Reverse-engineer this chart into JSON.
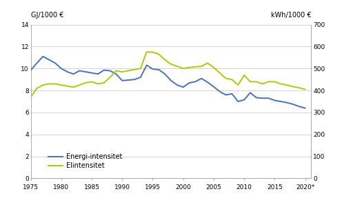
{
  "years": [
    1975,
    1976,
    1977,
    1978,
    1979,
    1980,
    1981,
    1982,
    1983,
    1984,
    1985,
    1986,
    1987,
    1988,
    1989,
    1990,
    1991,
    1992,
    1993,
    1994,
    1995,
    1996,
    1997,
    1998,
    1999,
    2000,
    2001,
    2002,
    2003,
    2004,
    2005,
    2006,
    2007,
    2008,
    2009,
    2010,
    2011,
    2012,
    2013,
    2014,
    2015,
    2016,
    2017,
    2018,
    2019,
    2020
  ],
  "energi": [
    9.85,
    10.5,
    11.1,
    10.8,
    10.5,
    10.0,
    9.7,
    9.5,
    9.8,
    9.7,
    9.6,
    9.5,
    9.85,
    9.8,
    9.5,
    8.9,
    8.95,
    9.0,
    9.2,
    10.3,
    9.95,
    9.9,
    9.5,
    8.9,
    8.5,
    8.3,
    8.7,
    8.8,
    9.1,
    8.75,
    8.35,
    7.9,
    7.6,
    7.7,
    7.0,
    7.15,
    7.8,
    7.35,
    7.3,
    7.3,
    7.1,
    7.0,
    6.9,
    6.75,
    6.55,
    6.4
  ],
  "elinten": [
    7.4,
    8.2,
    8.5,
    8.6,
    8.6,
    8.5,
    8.4,
    8.3,
    8.5,
    8.7,
    8.8,
    8.6,
    8.7,
    9.2,
    9.8,
    9.7,
    9.8,
    9.9,
    10.0,
    11.5,
    11.5,
    11.3,
    10.8,
    10.4,
    10.2,
    10.0,
    10.1,
    10.15,
    10.2,
    10.5,
    10.1,
    9.6,
    9.1,
    9.0,
    8.5,
    9.4,
    8.8,
    8.8,
    8.6,
    8.8,
    8.8,
    8.6,
    8.5,
    8.35,
    8.25,
    8.1
  ],
  "energi_color": "#4472C4",
  "elinten_color": "#AACC00",
  "ylabel_left": "GJ/1000 €",
  "ylabel_right": "kWh/1000 €",
  "ylim_left": [
    0,
    14
  ],
  "ylim_right": [
    0,
    700
  ],
  "yticks_left": [
    0,
    2,
    4,
    6,
    8,
    10,
    12,
    14
  ],
  "yticks_right": [
    0,
    100,
    200,
    300,
    400,
    500,
    600,
    700
  ],
  "xtick_vals": [
    1975,
    1980,
    1985,
    1990,
    1995,
    2000,
    2005,
    2010,
    2015,
    2020
  ],
  "xtick_labels": [
    "1975",
    "1980",
    "1985",
    "1990",
    "1995",
    "2000",
    "2005",
    "2010",
    "2015",
    "2020*"
  ],
  "legend_energi": "Energi-intensitet",
  "legend_elinten": "Elintensitet",
  "line_width": 1.4,
  "bg_color": "#ffffff",
  "grid_color": "#cccccc",
  "spine_color": "#aaaaaa"
}
